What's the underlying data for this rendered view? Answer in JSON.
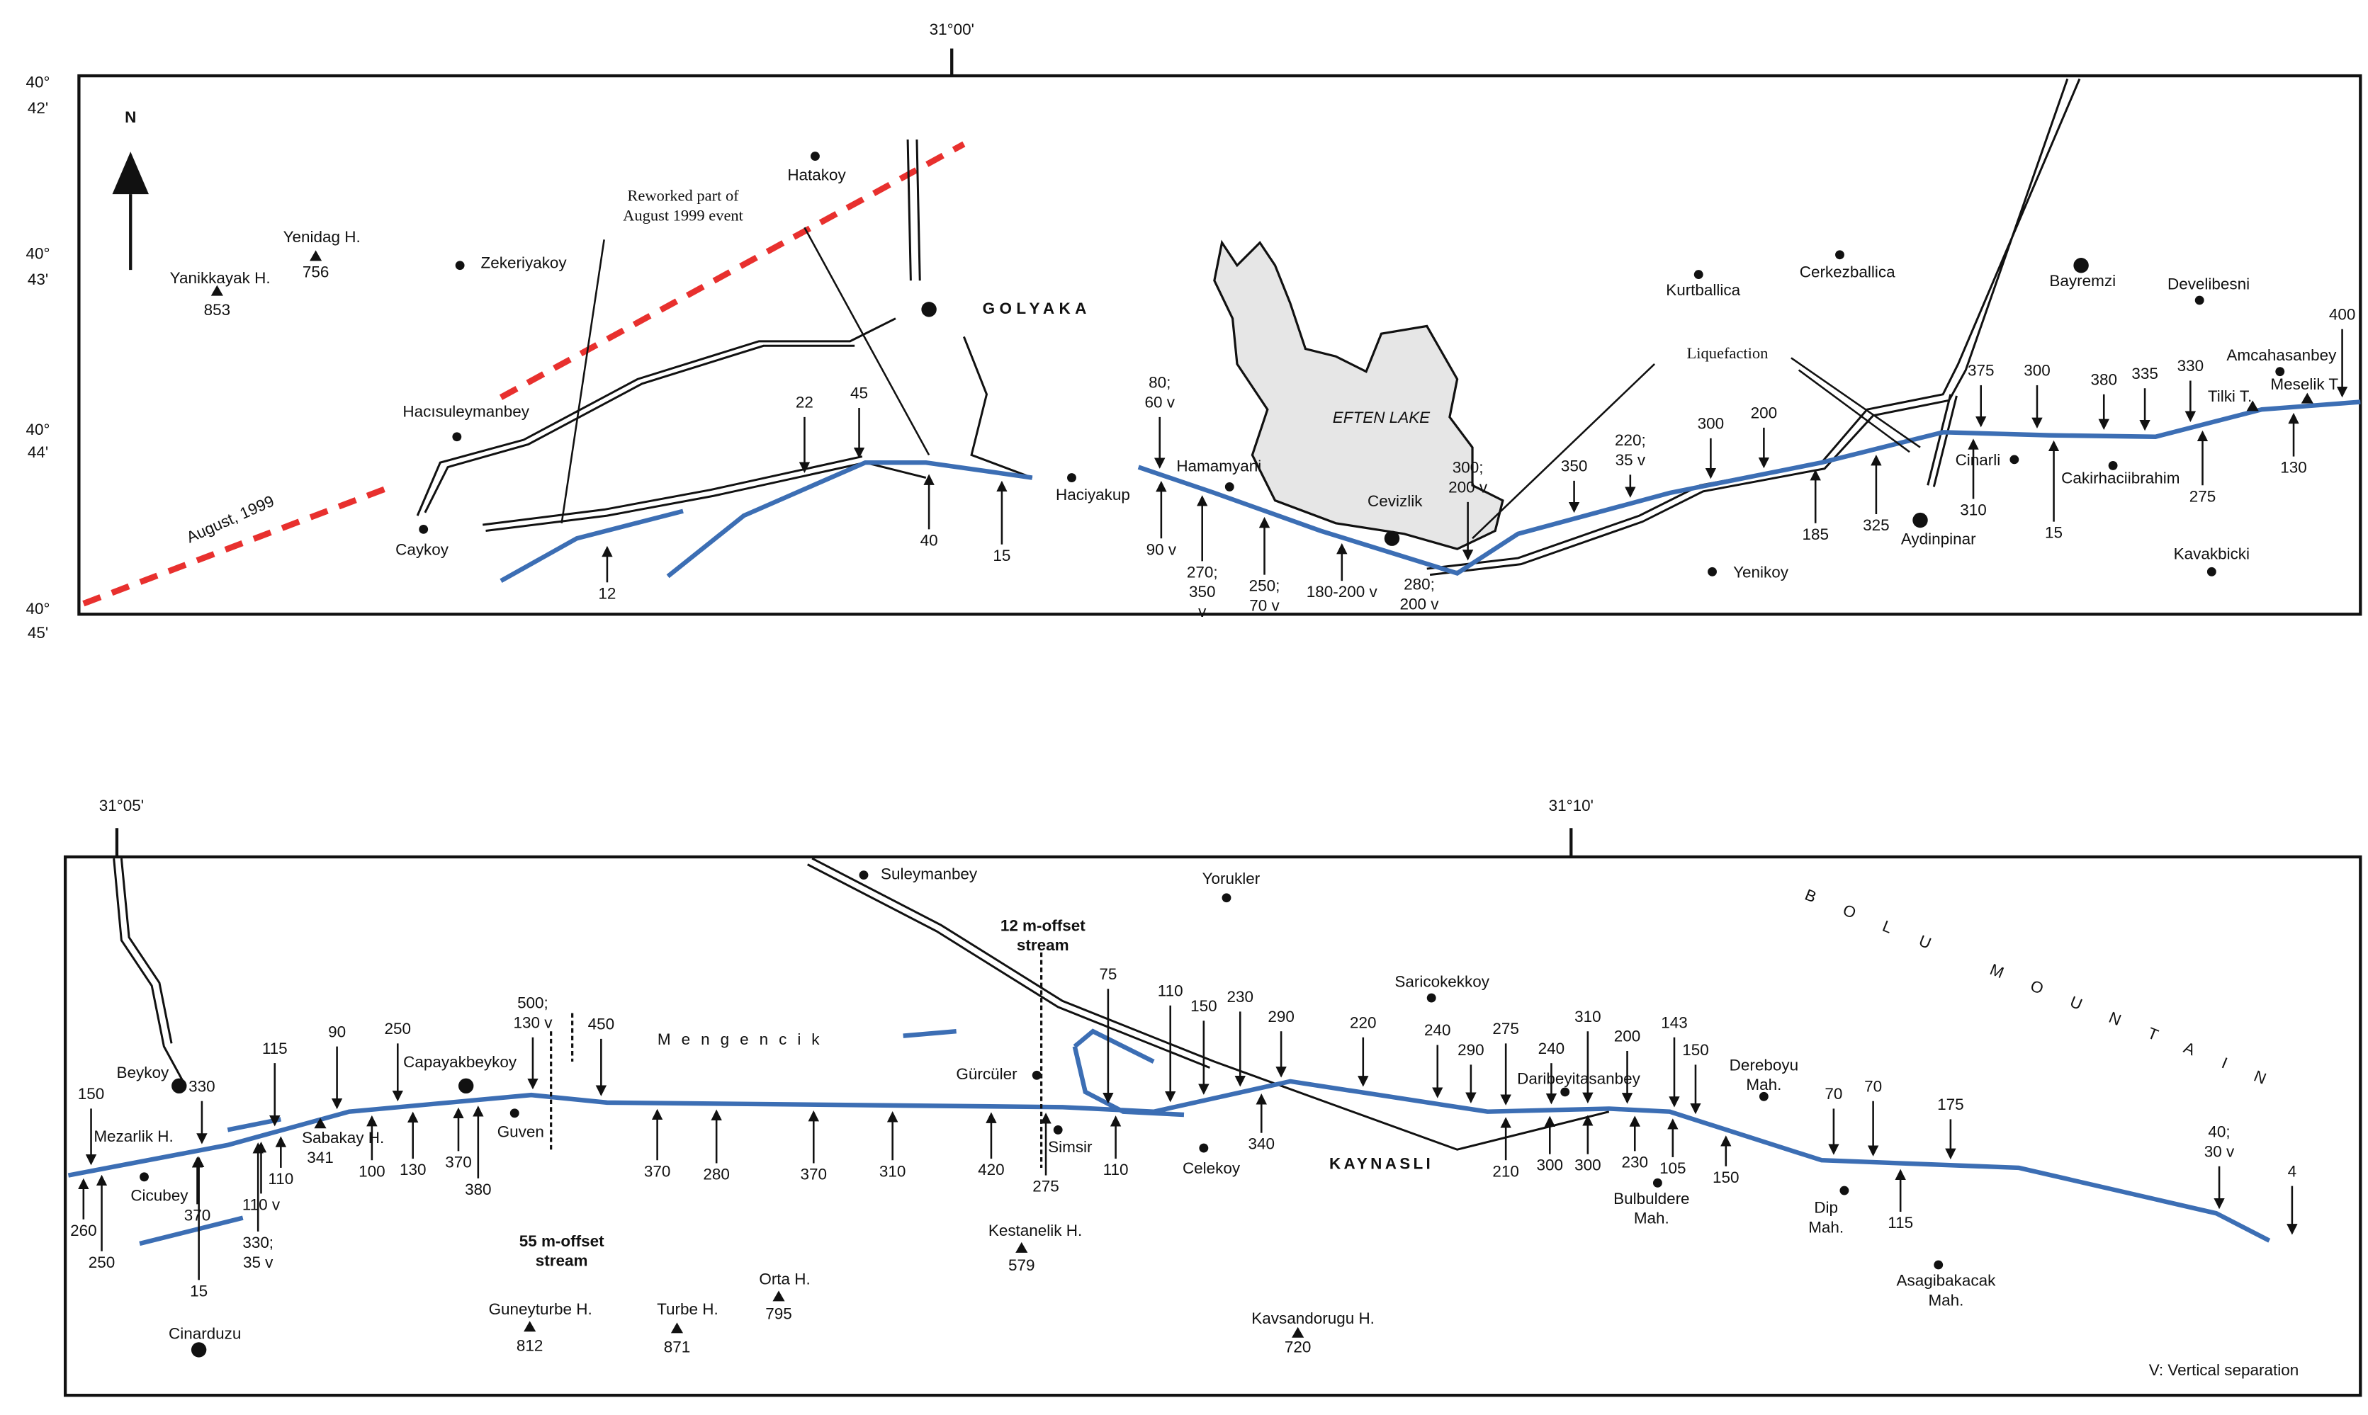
{
  "top_map": {
    "longitude": "31°00'",
    "latitudes": [
      [
        "40°",
        "42'"
      ],
      [
        "40°",
        "43'"
      ],
      [
        "40°",
        "44'"
      ],
      [
        "40°",
        "45'"
      ]
    ],
    "north": "N",
    "lake": "EFTEN LAKE",
    "town": "GOLYAKA",
    "rupture_label": "August, 1999",
    "notes": [
      [
        "Reworked part of",
        "August 1999 event"
      ],
      [
        "Liquefaction"
      ]
    ],
    "places": [
      "Hatakoy",
      "Zekeriyakoy",
      "Hacısuleymanbey",
      "Caykoy",
      "Haciyakup",
      "Hamamyani",
      "Cevizlik",
      "Kurtballica",
      "Cerkezballica",
      "Bayremzi",
      "Develibesni",
      "Amcahasanbey",
      "Tilki T.",
      "Meselik T.",
      "Cinarli",
      "Cakirhaciibrahim",
      "Aydinpinar",
      "Yenikoy",
      "Kavakbicki"
    ],
    "hills": [
      {
        "name": "Yenidag H.",
        "elevation": 756
      },
      {
        "name": "Yanikkayak H.",
        "elevation": 853
      }
    ],
    "offsets": [
      [
        "12"
      ],
      [
        "22"
      ],
      [
        "45"
      ],
      [
        "40"
      ],
      [
        "15"
      ],
      [
        "80;",
        "60 v"
      ],
      [
        "90 v"
      ],
      [
        "270;",
        "350",
        "v"
      ],
      [
        "250;",
        "70 v"
      ],
      [
        "180-200 v"
      ],
      [
        "280;",
        "200 v"
      ],
      [
        "300;",
        "200 v"
      ],
      [
        "350"
      ],
      [
        "220;",
        "35 v"
      ],
      [
        "300"
      ],
      [
        "200"
      ],
      [
        "185"
      ],
      [
        "325"
      ],
      [
        "375"
      ],
      [
        "300"
      ],
      [
        "310"
      ],
      [
        "15"
      ],
      [
        "380"
      ],
      [
        "335"
      ],
      [
        "330"
      ],
      [
        "275"
      ],
      [
        "130"
      ],
      [
        "400"
      ]
    ]
  },
  "bottom_map": {
    "longitudes": [
      "31°05'",
      "31°10'"
    ],
    "town": "KAYNASLI",
    "stream_name": "Mengencik",
    "mountain": "BOLU MOUNTAIN",
    "notes": [
      [
        "12 m-offset",
        "stream"
      ],
      [
        "55 m-offset",
        "stream"
      ]
    ],
    "legend": "V: Vertical separation",
    "places": [
      "Suleymanbey",
      "Yorukler",
      "Saricokekkoy",
      [
        "Dereboyu",
        "Mah."
      ],
      "Beykoy",
      "Mezarlik H.",
      "Cicubey",
      "Capayakbeykoy",
      "Guven",
      "Gürcüler",
      "Simsir",
      "Celekoy",
      "Daribeyitasanbey",
      [
        "Bulbuldere",
        "Mah."
      ],
      [
        "Dip",
        "Mah."
      ],
      [
        "Asagibakacak",
        "Mah."
      ],
      "Cinarduzu"
    ],
    "hills": [
      {
        "name": "Sabakay H.",
        "elevation": 341
      },
      {
        "name": "Kestanelik H.",
        "elevation": 579
      },
      {
        "name": "Orta H.",
        "elevation": 795
      },
      {
        "name": "Guneyturbe H.",
        "elevation": 812
      },
      {
        "name": "Turbe H.",
        "elevation": 871
      },
      {
        "name": "Kavsandorugu H.",
        "elevation": 720
      }
    ],
    "offsets": [
      [
        "150"
      ],
      [
        "260"
      ],
      [
        "250"
      ],
      [
        "330"
      ],
      [
        "370"
      ],
      [
        "110"
      ],
      [
        "110 v"
      ],
      [
        "330;",
        "35 v"
      ],
      [
        "15"
      ],
      [
        "115"
      ],
      [
        "90"
      ],
      [
        "250"
      ],
      [
        "100"
      ],
      [
        "130"
      ],
      [
        "370"
      ],
      [
        "380"
      ],
      [
        "500;",
        "130 v"
      ],
      [
        "450"
      ],
      [
        "370"
      ],
      [
        "280"
      ],
      [
        "370"
      ],
      [
        "310"
      ],
      [
        "420"
      ],
      [
        "275"
      ],
      [
        "110"
      ],
      [
        "75"
      ],
      [
        "110"
      ],
      [
        "150"
      ],
      [
        "230"
      ],
      [
        "290"
      ],
      [
        "340"
      ],
      [
        "220"
      ],
      [
        "240"
      ],
      [
        "290"
      ],
      [
        "275"
      ],
      [
        "210"
      ],
      [
        "240"
      ],
      [
        "300"
      ],
      [
        "310"
      ],
      [
        "300"
      ],
      [
        "200"
      ],
      [
        "230"
      ],
      [
        "143"
      ],
      [
        "105"
      ],
      [
        "150"
      ],
      [
        "150"
      ],
      [
        "70"
      ],
      [
        "70"
      ],
      [
        "115"
      ],
      [
        "175"
      ],
      [
        "40;",
        "30 v"
      ],
      [
        "4"
      ]
    ]
  }
}
